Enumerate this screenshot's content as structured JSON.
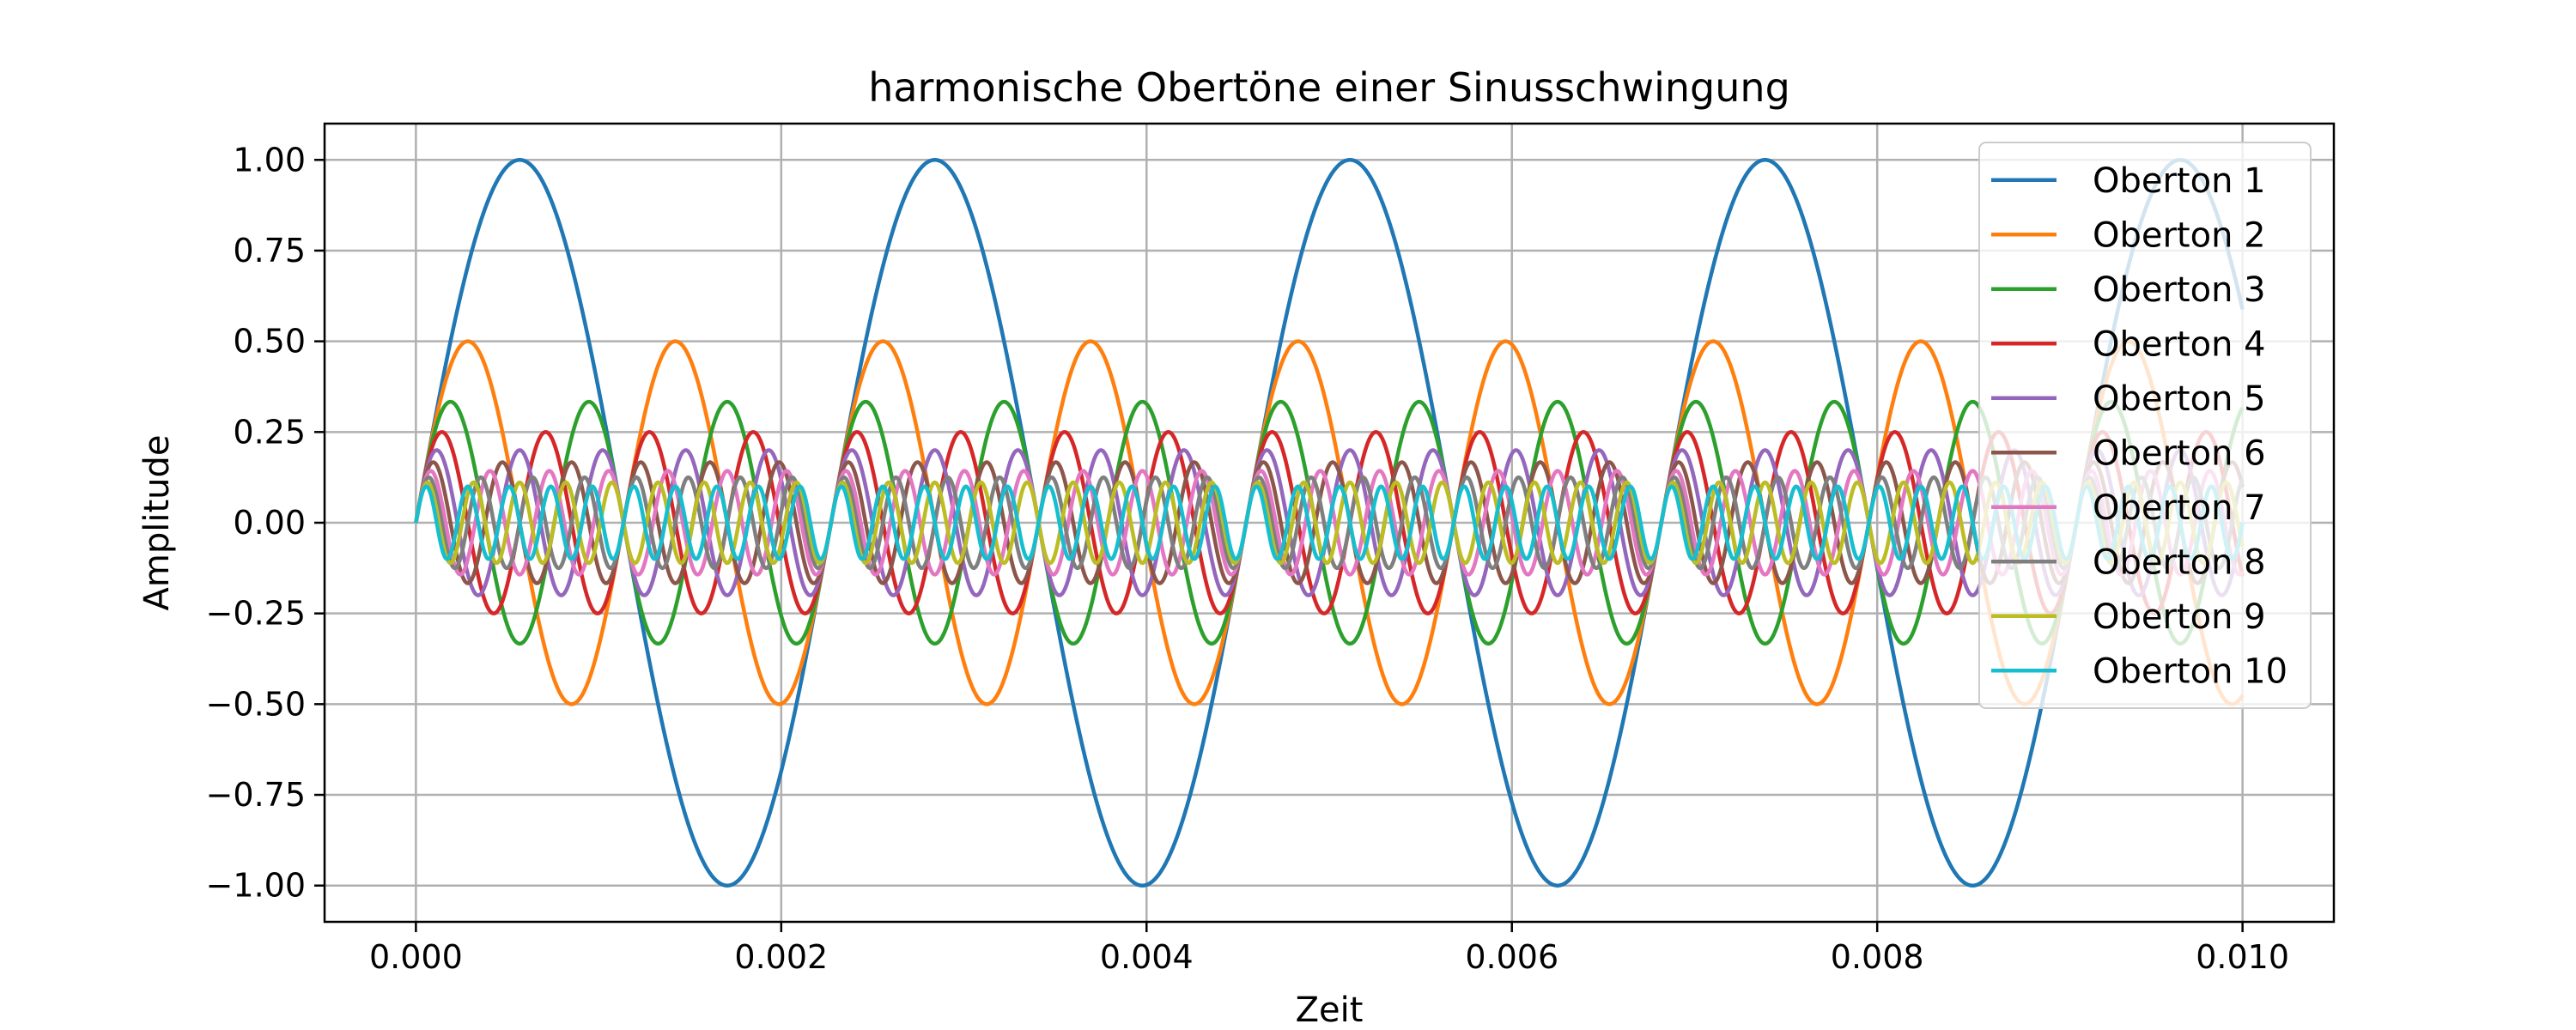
{
  "chart_data": {
    "type": "line",
    "title": "harmonische Obertöne einer Sinusschwingung",
    "xlabel": "Zeit",
    "ylabel": "Amplitude",
    "xlim": [
      -0.0005,
      0.0105
    ],
    "ylim": [
      -1.1,
      1.1
    ],
    "x_ticks": [
      "0.000",
      "0.002",
      "0.004",
      "0.006",
      "0.008",
      "0.010"
    ],
    "x_tick_values": [
      0.0,
      0.002,
      0.004,
      0.006,
      0.008,
      0.01
    ],
    "y_ticks": [
      "1.00",
      "0.75",
      "0.50",
      "0.25",
      "0.00",
      "−0.25",
      "−0.50",
      "−0.75",
      "−1.00"
    ],
    "y_tick_values": [
      1.0,
      0.75,
      0.5,
      0.25,
      0.0,
      -0.25,
      -0.5,
      -0.75,
      -1.0
    ],
    "grid": true,
    "legend_position": "top-right",
    "x_range": [
      0.0,
      0.01
    ],
    "fundamental_frequency": 440,
    "series": [
      {
        "name": "Oberton 1",
        "harmonic": 1,
        "amplitude": 1.0,
        "color": "#1f77b4"
      },
      {
        "name": "Oberton 2",
        "harmonic": 2,
        "amplitude": 0.5,
        "color": "#ff7f0e"
      },
      {
        "name": "Oberton 3",
        "harmonic": 3,
        "amplitude": 0.3333,
        "color": "#2ca02c"
      },
      {
        "name": "Oberton 4",
        "harmonic": 4,
        "amplitude": 0.25,
        "color": "#d62728"
      },
      {
        "name": "Oberton 5",
        "harmonic": 5,
        "amplitude": 0.2,
        "color": "#9467bd"
      },
      {
        "name": "Oberton 6",
        "harmonic": 6,
        "amplitude": 0.1667,
        "color": "#8c564b"
      },
      {
        "name": "Oberton 7",
        "harmonic": 7,
        "amplitude": 0.1429,
        "color": "#e377c2"
      },
      {
        "name": "Oberton 8",
        "harmonic": 8,
        "amplitude": 0.125,
        "color": "#7f7f7f"
      },
      {
        "name": "Oberton 9",
        "harmonic": 9,
        "amplitude": 0.1111,
        "color": "#bcbd22"
      },
      {
        "name": "Oberton 10",
        "harmonic": 10,
        "amplitude": 0.1,
        "color": "#17becf"
      }
    ]
  }
}
